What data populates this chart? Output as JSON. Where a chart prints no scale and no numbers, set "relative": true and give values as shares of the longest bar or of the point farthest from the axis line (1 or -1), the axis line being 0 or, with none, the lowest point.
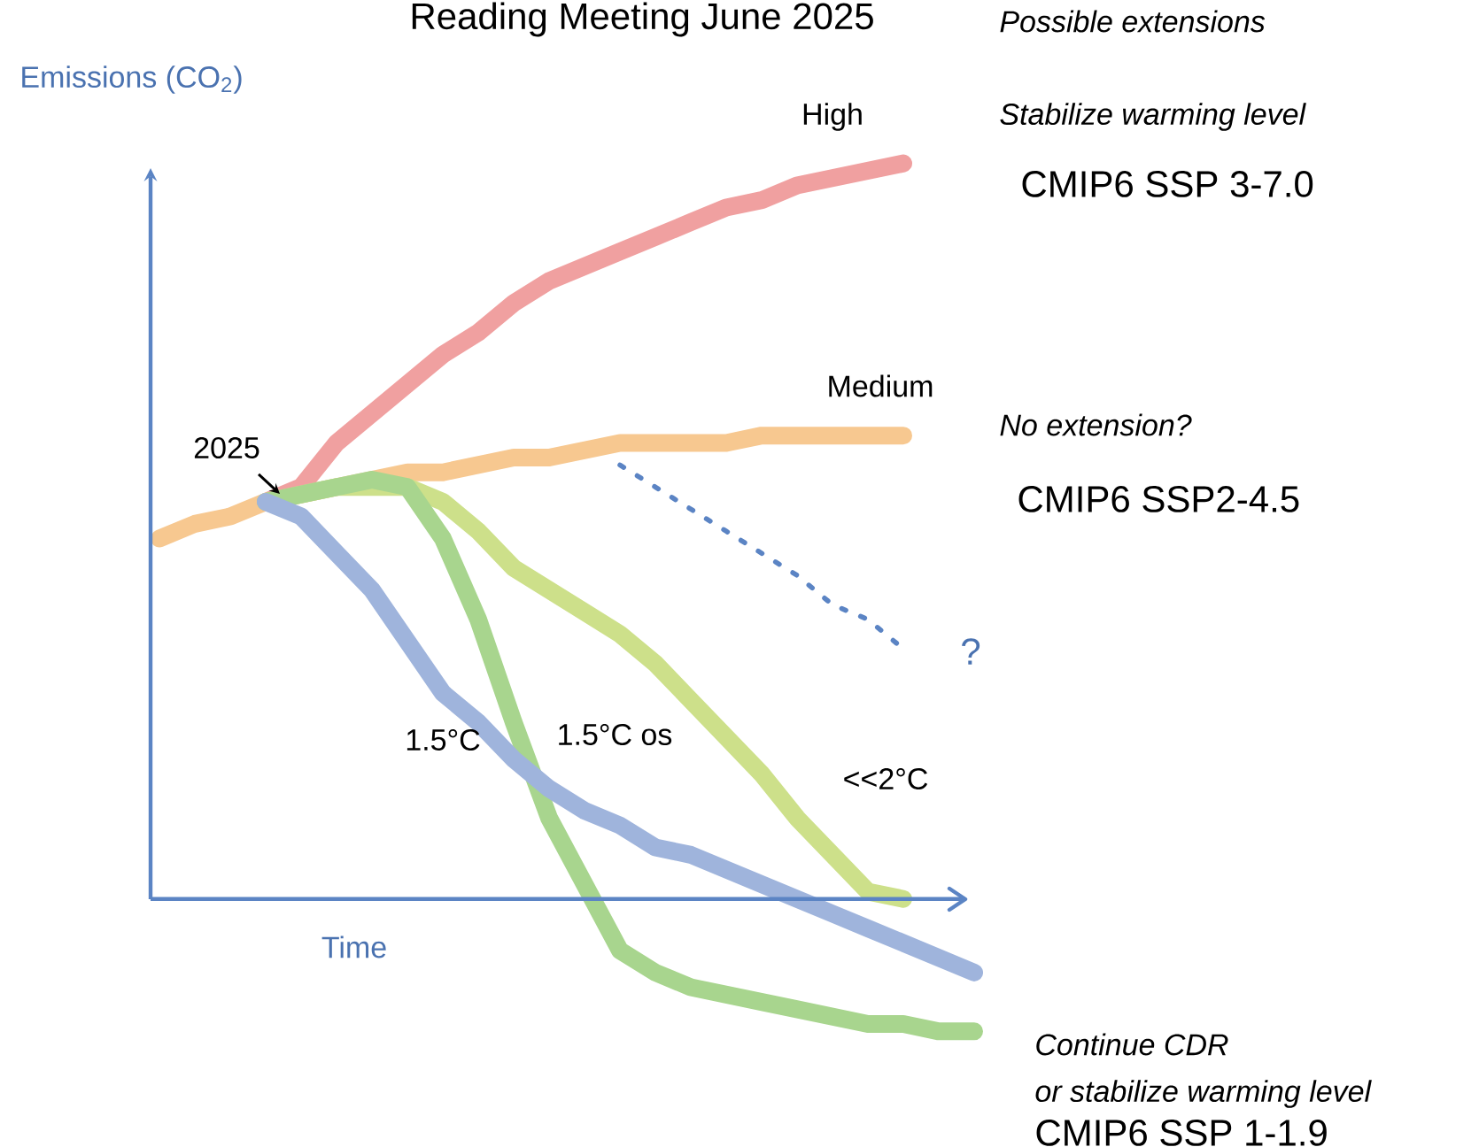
{
  "chart_data": {
    "type": "line",
    "title": "Reading Meeting June 2025",
    "ylabel": "Emissions (CO$_{2}$)",
    "xlabel": "Time",
    "categories": [
      null,
      null,
      null,
      null,
      null,
      null,
      null,
      null,
      null,
      null,
      null,
      null,
      null,
      null,
      null,
      null,
      null,
      null,
      null,
      null,
      null,
      null,
      null,
      null
    ],
    "relative": true,
    "legend": false,
    "marker": "none",
    "ref_lines": [
      {
        "axis": "y",
        "value": 0,
        "color": "#5b84c4"
      }
    ],
    "line_style": "solid",
    "series": [
      {
        "name": "Medium",
        "color": "#f7c890",
        "values": [
          0.49,
          0.51,
          0.52,
          0.54,
          0.55,
          0.56,
          0.57,
          0.58,
          0.58,
          0.59,
          0.6,
          0.6,
          0.61,
          0.62,
          0.62,
          0.62,
          0.62,
          0.63,
          0.63,
          0.63,
          0.63,
          0.63,
          null,
          null
        ]
      },
      {
        "name": "High",
        "color": "#f0a0a0",
        "values": [
          null,
          null,
          null,
          0.54,
          0.56,
          0.62,
          0.66,
          0.7,
          0.74,
          0.77,
          0.81,
          0.84,
          0.86,
          0.88,
          0.9,
          0.92,
          0.94,
          0.95,
          0.97,
          0.98,
          0.99,
          1.0,
          null,
          null
        ]
      },
      {
        "name": "<<2°C",
        "color": "#cde08a",
        "values": [
          null,
          null,
          null,
          0.54,
          0.55,
          0.56,
          0.56,
          0.56,
          0.54,
          0.5,
          0.45,
          0.42,
          0.39,
          0.36,
          0.32,
          0.27,
          0.22,
          0.17,
          0.11,
          0.06,
          0.01,
          0.0,
          null,
          null
        ]
      },
      {
        "name": "1.5°C os",
        "color": "#a8d58e",
        "values": [
          null,
          null,
          null,
          0.54,
          0.55,
          0.56,
          0.57,
          0.56,
          0.49,
          0.38,
          0.24,
          0.11,
          0.02,
          -0.07,
          -0.1,
          -0.12,
          -0.13,
          -0.14,
          -0.15,
          -0.16,
          -0.17,
          -0.17,
          -0.18,
          -0.18
        ]
      },
      {
        "name": "1.5°C",
        "color": "#9fb4dc",
        "values": [
          null,
          null,
          null,
          0.54,
          0.52,
          0.47,
          0.42,
          0.35,
          0.28,
          0.24,
          0.19,
          0.15,
          0.12,
          0.1,
          0.07,
          0.06,
          0.04,
          0.02,
          0.0,
          -0.02,
          -0.04,
          -0.06,
          -0.08,
          -0.1
        ]
      },
      {
        "color": "#5b84c4",
        "line_style": "dotted",
        "values": [
          null,
          null,
          null,
          null,
          null,
          null,
          null,
          null,
          null,
          null,
          null,
          null,
          null,
          0.59,
          0.56,
          0.53,
          0.5,
          0.47,
          0.44,
          0.4,
          0.38,
          0.34,
          null,
          null
        ]
      }
    ],
    "annotations": [
      "2025",
      "?",
      "Possible extensions",
      "Stabilize warming level",
      "CMIP6 SSP 3-7.0",
      "No extension?",
      "CMIP6 SSP2-4.5",
      "Continue CDR",
      "or stabilize warming level",
      "CMIP6 SSP 1-1.9"
    ]
  }
}
